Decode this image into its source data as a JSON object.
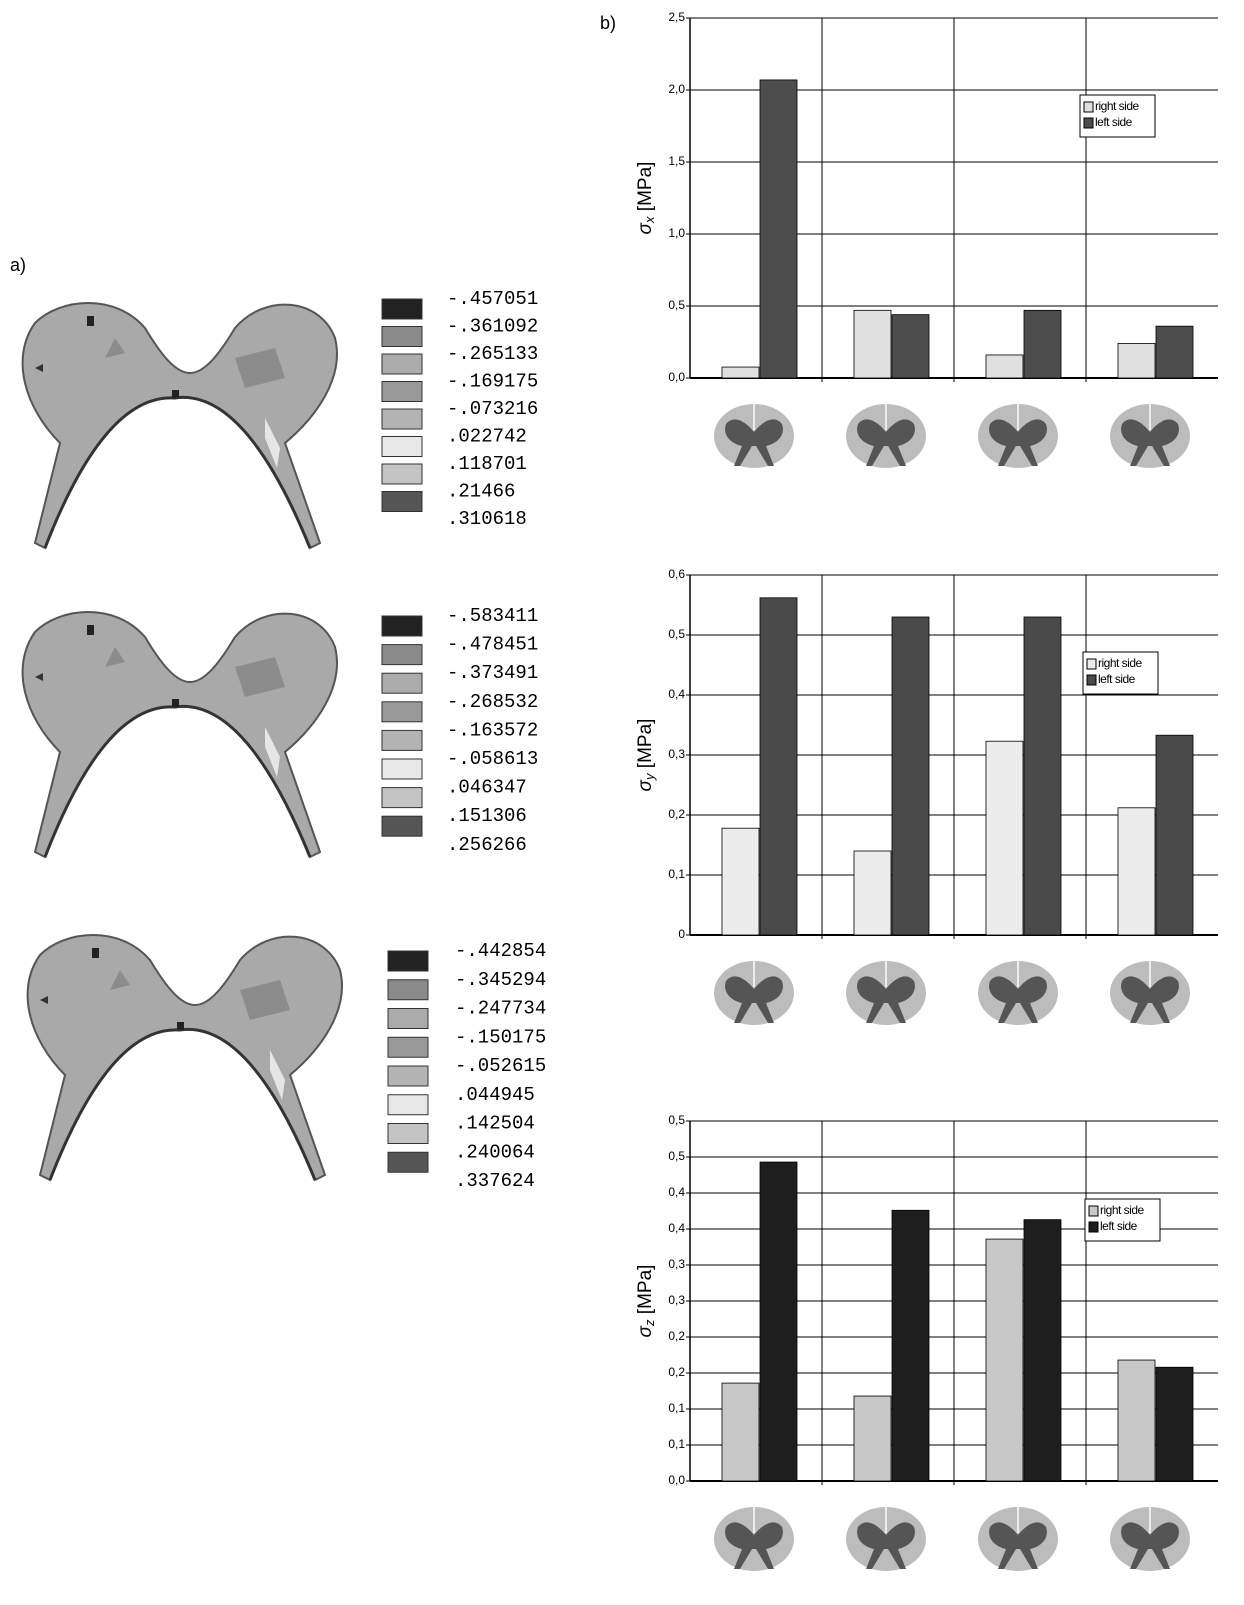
{
  "panel_a": {
    "label": "a)",
    "legends": [
      [
        ".457051",
        ".361092",
        ".265133",
        ".169175",
        ".073216",
        ".022742",
        ".118701",
        ".21466",
        ".310618"
      ],
      [
        ".583411",
        ".478451",
        ".373491",
        ".268532",
        ".163572",
        ".058613",
        ".046347",
        ".151306",
        ".256266"
      ],
      [
        ".442854",
        ".345294",
        ".247734",
        ".150175",
        ".052615",
        ".044945",
        ".142504",
        ".240064",
        ".337624"
      ]
    ],
    "signs": [
      [
        "-",
        "-",
        "-",
        "-",
        "-",
        "",
        "",
        "",
        ""
      ],
      [
        "-",
        "-",
        "-",
        "-",
        "-",
        "-",
        "",
        "",
        ""
      ],
      [
        "-",
        "-",
        "-",
        "-",
        "-",
        "",
        "",
        "",
        ""
      ]
    ]
  },
  "panel_b": {
    "label": "b)"
  },
  "chart_data": [
    {
      "type": "bar",
      "ylabel": {
        "symbol": "σ",
        "sub": "x",
        "unit": " [MPa]"
      },
      "categories": [
        null,
        null,
        null,
        null
      ],
      "series": [
        {
          "name": "right side",
          "color": "#e0e0e0",
          "values": [
            0.076,
            0.47,
            0.16,
            0.24
          ]
        },
        {
          "name": "left side",
          "color": "#4d4d4d",
          "values": [
            2.07,
            0.44,
            0.47,
            0.36
          ]
        }
      ],
      "ylim": [
        0,
        2.5
      ],
      "yticks": [
        {
          "value": 0,
          "label": "0,0"
        },
        {
          "value": 0.5,
          "label": "0,5"
        },
        {
          "value": 1,
          "label": "1,0"
        },
        {
          "value": 1.5,
          "label": "1,5"
        },
        {
          "value": 2,
          "label": "2,0"
        },
        {
          "value": 2.5,
          "label": "2,5"
        }
      ],
      "grid": true,
      "legend": "upper right"
    },
    {
      "type": "bar",
      "ylabel": {
        "symbol": "σ",
        "sub": "y",
        "unit": " [MPa]"
      },
      "categories": [
        null,
        null,
        null,
        null
      ],
      "series": [
        {
          "name": "right side",
          "color": "#ececec",
          "values": [
            0.178,
            0.14,
            0.323,
            0.212
          ]
        },
        {
          "name": "left side",
          "color": "#4a4a4a",
          "values": [
            0.562,
            0.53,
            0.53,
            0.333
          ]
        }
      ],
      "ylim": [
        0,
        0.6
      ],
      "yticks": [
        0,
        {
          "value": 0.1,
          "label": "0,1"
        },
        {
          "value": 0.2,
          "label": "0,2"
        },
        {
          "value": 0.3,
          "label": "0,3"
        },
        {
          "value": 0.4,
          "label": "0,4"
        },
        {
          "value": 0.5,
          "label": "0,5"
        },
        {
          "value": 0.6,
          "label": "0,6"
        }
      ],
      "grid": true,
      "legend": "center right"
    },
    {
      "type": "bar",
      "ylabel": {
        "symbol": "σ",
        "sub": "z",
        "unit": " [MPa]"
      },
      "categories": [
        null,
        null,
        null,
        null
      ],
      "series": [
        {
          "name": "right side",
          "color": "#c8c8c8",
          "values": [
            0.136,
            0.118,
            0.336,
            0.168
          ]
        },
        {
          "name": "left side",
          "color": "#1e1e1e",
          "values": [
            0.443,
            0.376,
            0.363,
            0.158
          ]
        }
      ],
      "ylim": [
        0,
        0.5
      ],
      "yticks": [
        {
          "value": 0,
          "label": "0,0"
        },
        {
          "value": 0.05,
          "label": "0,1"
        },
        {
          "value": 0.1,
          "label": "0,1"
        },
        {
          "value": 0.15,
          "label": "0,2"
        },
        {
          "value": 0.2,
          "label": "0,2"
        },
        {
          "value": 0.25,
          "label": "0,3"
        },
        {
          "value": 0.3,
          "label": "0,3"
        },
        {
          "value": 0.35,
          "label": "0,4"
        },
        {
          "value": 0.4,
          "label": "0,4"
        },
        {
          "value": 0.45,
          "label": "0,5"
        },
        {
          "value": 0.5,
          "label": "0,5"
        }
      ],
      "grid": true,
      "legend": "center right"
    }
  ]
}
